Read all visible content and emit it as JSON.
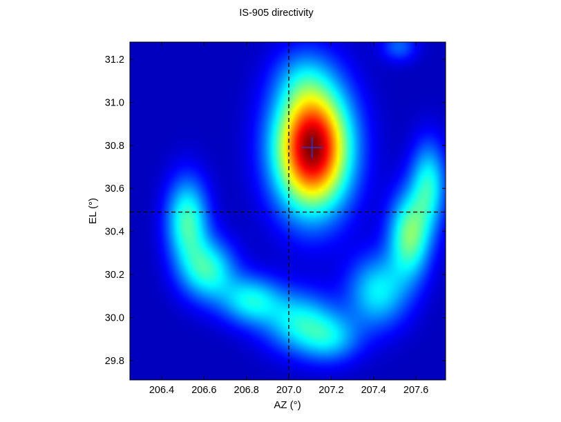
{
  "chart_data": {
    "type": "heatmap",
    "title": "IS-905 directivity",
    "xlabel": "AZ (°)",
    "ylabel": "EL (°)",
    "xlim": [
      206.25,
      207.74
    ],
    "ylim": [
      29.71,
      31.28
    ],
    "xticks": [
      206.4,
      206.6,
      206.8,
      207.0,
      207.2,
      207.4,
      207.6
    ],
    "xtick_labels": [
      "206.4",
      "206.6",
      "206.8",
      "207.0",
      "207.2",
      "207.4",
      "207.6"
    ],
    "yticks": [
      29.8,
      30.0,
      30.2,
      30.4,
      30.6,
      30.8,
      31.0,
      31.2
    ],
    "ytick_labels": [
      "29.8",
      "30.0",
      "30.2",
      "30.4",
      "30.6",
      "30.8",
      "31.0",
      "31.2"
    ],
    "colormap": "jet",
    "crosshair_lines": {
      "x": 207.0,
      "y": 30.49,
      "style": "dashed",
      "color": "#000000"
    },
    "peak_marker": {
      "x": 207.11,
      "y": 30.79,
      "marker": "+",
      "color": "#2a3bd8"
    },
    "grid": false
  }
}
